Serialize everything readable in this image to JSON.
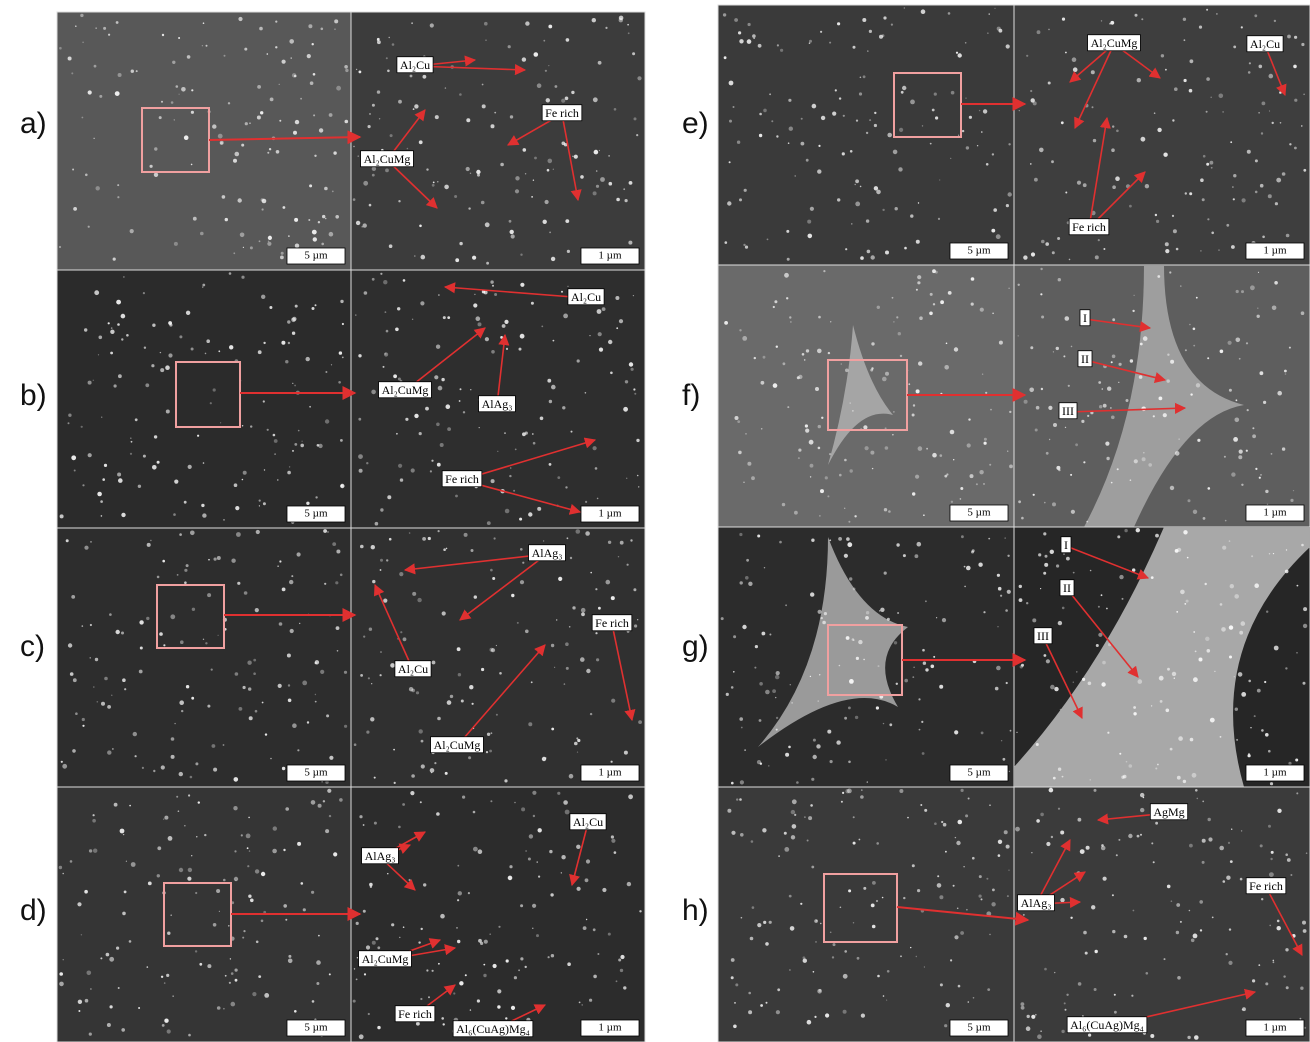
{
  "panels": [
    {
      "label": "a)",
      "scale_left": "5 µm",
      "scale_right": "1 µm",
      "annotations": [
        "Al₂Cu",
        "Fe rich",
        "Al₂CuMg"
      ]
    },
    {
      "label": "b)",
      "scale_left": "5 µm",
      "scale_right": "1 µm",
      "annotations": [
        "Al₂Cu",
        "Al₂CuMg",
        "AlAg₃",
        "Fe rich"
      ]
    },
    {
      "label": "c)",
      "scale_left": "5 µm",
      "scale_right": "1 µm",
      "annotations": [
        "AlAg₃",
        "Al₂Cu",
        "Fe rich",
        "Al₂CuMg"
      ]
    },
    {
      "label": "d)",
      "scale_left": "5 µm",
      "scale_right": "1 µm",
      "annotations": [
        "Al₂Cu",
        "AlAg₃",
        "Al₂CuMg",
        "Fe rich",
        "Al₆(CuAg)Mg₄"
      ]
    },
    {
      "label": "e)",
      "scale_left": "5 µm",
      "scale_right": "1 µm",
      "annotations": [
        "Al₂CuMg",
        "Al₂Cu",
        "Fe rich"
      ]
    },
    {
      "label": "f)",
      "scale_left": "5 µm",
      "scale_right": "1 µm",
      "annotations": [
        "I",
        "II",
        "III"
      ]
    },
    {
      "label": "g)",
      "scale_left": "5 µm",
      "scale_right": "1 µm",
      "annotations": [
        "I",
        "II",
        "III"
      ]
    },
    {
      "label": "h)",
      "scale_left": "5 µm",
      "scale_right": "1 µm",
      "annotations": [
        "AgMg",
        "AlAg₃",
        "Fe rich",
        "Al₆(CuAg)Mg₄"
      ]
    }
  ]
}
